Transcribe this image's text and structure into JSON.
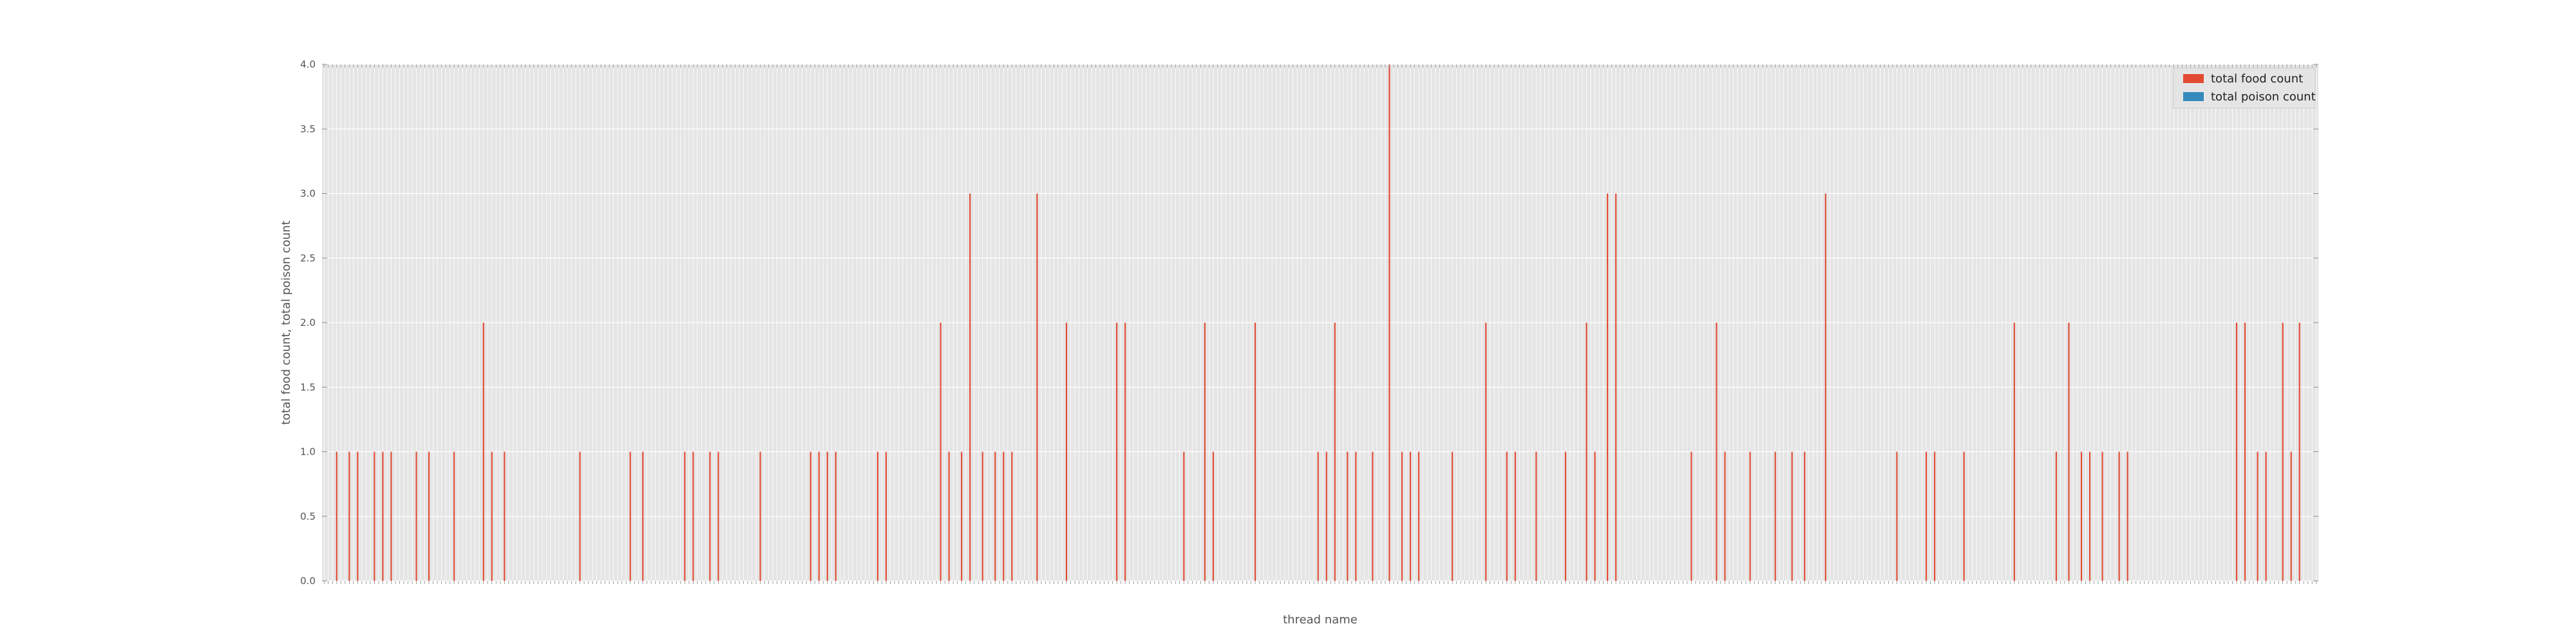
{
  "chart_data": {
    "type": "bar",
    "title": "",
    "xlabel": "thread name",
    "ylabel": "total food count, total poison count",
    "ylim": [
      0,
      4
    ],
    "yticks": [
      "0.0",
      "0.5",
      "1.0",
      "1.5",
      "2.0",
      "2.5",
      "3.0",
      "3.5",
      "4.0"
    ],
    "grid": true,
    "legend_position": "top-right",
    "series": [
      {
        "name": "total food count",
        "color": "#E24A33",
        "values": [
          0,
          0,
          0,
          1,
          0,
          0,
          1,
          0,
          1,
          0,
          0,
          0,
          1,
          0,
          1,
          0,
          1,
          0,
          0,
          0,
          0,
          0,
          1,
          0,
          0,
          1,
          0,
          0,
          0,
          0,
          0,
          1,
          0,
          0,
          0,
          0,
          0,
          0,
          2,
          0,
          1,
          0,
          0,
          1,
          0,
          0,
          0,
          0,
          0,
          0,
          0,
          0,
          0,
          0,
          0,
          0,
          0,
          0,
          0,
          0,
          0,
          1,
          0,
          0,
          0,
          0,
          0,
          0,
          0,
          0,
          0,
          0,
          0,
          1,
          0,
          0,
          1,
          0,
          0,
          0,
          0,
          0,
          0,
          0,
          0,
          0,
          1,
          0,
          1,
          0,
          0,
          0,
          1,
          0,
          1,
          0,
          0,
          0,
          0,
          0,
          0,
          0,
          0,
          0,
          1,
          0,
          0,
          0,
          0,
          0,
          0,
          0,
          0,
          0,
          0,
          0,
          1,
          0,
          1,
          0,
          1,
          0,
          1,
          0,
          0,
          0,
          0,
          0,
          0,
          0,
          0,
          0,
          1,
          0,
          1,
          0,
          0,
          0,
          0,
          0,
          0,
          0,
          0,
          0,
          0,
          0,
          0,
          2,
          0,
          1,
          0,
          0,
          1,
          0,
          3,
          0,
          0,
          1,
          0,
          0,
          1,
          0,
          1,
          0,
          1,
          0,
          0,
          0,
          0,
          0,
          3,
          0,
          0,
          0,
          0,
          0,
          0,
          2,
          0,
          0,
          0,
          0,
          0,
          0,
          0,
          0,
          0,
          0,
          0,
          2,
          0,
          2,
          0,
          0,
          0,
          0,
          0,
          0,
          0,
          0,
          0,
          0,
          0,
          0,
          0,
          1,
          0,
          0,
          0,
          0,
          2,
          0,
          1,
          0,
          0,
          0,
          0,
          0,
          0,
          0,
          0,
          0,
          2,
          0,
          0,
          0,
          0,
          0,
          0,
          0,
          0,
          0,
          0,
          0,
          0,
          0,
          0,
          1,
          0,
          1,
          0,
          2,
          0,
          0,
          1,
          0,
          1,
          0,
          0,
          0,
          1,
          0,
          0,
          0,
          4,
          0,
          0,
          1,
          0,
          1,
          0,
          1,
          0,
          0,
          0,
          0,
          0,
          0,
          0,
          1,
          0,
          0,
          0,
          0,
          0,
          0,
          0,
          2,
          0,
          0,
          0,
          0,
          1,
          0,
          1,
          0,
          0,
          0,
          0,
          1,
          0,
          0,
          0,
          0,
          0,
          0,
          1,
          0,
          0,
          0,
          0,
          2,
          0,
          1,
          0,
          0,
          3,
          0,
          3,
          0,
          0,
          0,
          0,
          0,
          0,
          0,
          0,
          0,
          0,
          0,
          0,
          0,
          0,
          0,
          0,
          0,
          1,
          0,
          0,
          0,
          0,
          0,
          2,
          0,
          1,
          0,
          0,
          0,
          0,
          0,
          1,
          0,
          0,
          0,
          0,
          0,
          1,
          0,
          0,
          0,
          1,
          0,
          0,
          1,
          0,
          0,
          0,
          0,
          3,
          0,
          0,
          0,
          0,
          0,
          0,
          0,
          0,
          0,
          0,
          0,
          0,
          0,
          0,
          0,
          0,
          1,
          0,
          0,
          0,
          0,
          0,
          0,
          1,
          0,
          1,
          0,
          0,
          0,
          0,
          0,
          0,
          1,
          0,
          0,
          0,
          0,
          0,
          0,
          0,
          0,
          0,
          0,
          0,
          2,
          0,
          0,
          0,
          0,
          0,
          0,
          0,
          0,
          0,
          1,
          0,
          0,
          2,
          0,
          0,
          1,
          0,
          1,
          0,
          0,
          1,
          0,
          0,
          0,
          1,
          0,
          1,
          0,
          0,
          0,
          0,
          0,
          0,
          0,
          0,
          0,
          0,
          0,
          0,
          0,
          0,
          0,
          0,
          0,
          0,
          0,
          0,
          0,
          0,
          0,
          0,
          0,
          2,
          0,
          2,
          0,
          0,
          1,
          0,
          1,
          0,
          0,
          0,
          2,
          0,
          1,
          0,
          2,
          0,
          0,
          0,
          0
        ]
      },
      {
        "name": "total poison count",
        "color": "#348ABD",
        "values": [
          0,
          0,
          0,
          0,
          0,
          0,
          0,
          0,
          0,
          0,
          0,
          0,
          0,
          0,
          0,
          0,
          0,
          0,
          0,
          0,
          0,
          0,
          0,
          0,
          0,
          0,
          0,
          0,
          0,
          0,
          0,
          0,
          0,
          0,
          0,
          0,
          0,
          0,
          0,
          0,
          0,
          0,
          0,
          0,
          0,
          0,
          0,
          0,
          0,
          0,
          0,
          0,
          0,
          0,
          0,
          0,
          0,
          0,
          0,
          0,
          0,
          0,
          0,
          0,
          0,
          0,
          0,
          0,
          0,
          0,
          0,
          0,
          0,
          0,
          0,
          0,
          0,
          0,
          0,
          0,
          0,
          0,
          0,
          0,
          0,
          0,
          0,
          0,
          0,
          0,
          0,
          0,
          0,
          0,
          0,
          0,
          0,
          0,
          0,
          0,
          0,
          0,
          0,
          0,
          0,
          0,
          0,
          0,
          0,
          0,
          0,
          0,
          0,
          0,
          0,
          0,
          0,
          0,
          0,
          0,
          0,
          0,
          0,
          0,
          0,
          0,
          0,
          0,
          0,
          0,
          0,
          0,
          0,
          0,
          0,
          0,
          0,
          0,
          0,
          0,
          0,
          0,
          0,
          0,
          0,
          0,
          0,
          0,
          0,
          0,
          0,
          0,
          0,
          0,
          0,
          0,
          0,
          0,
          0,
          0,
          0,
          0,
          0,
          0,
          0,
          0,
          0,
          0,
          0,
          0,
          0,
          0,
          0,
          0,
          0,
          0,
          0,
          0,
          0,
          0,
          0,
          0,
          0,
          0,
          0,
          0,
          0,
          0,
          0,
          0,
          0,
          0,
          0,
          0,
          0,
          0,
          0,
          0,
          0,
          0,
          0,
          0,
          0,
          0,
          0,
          0,
          0,
          0,
          0,
          0,
          0,
          0,
          0,
          0,
          0,
          0,
          0,
          0,
          0,
          0,
          0,
          0,
          0,
          0,
          0,
          0,
          0,
          0,
          0,
          0,
          0,
          0,
          0,
          0,
          0,
          0,
          0,
          0,
          0,
          0,
          0,
          0,
          0,
          0,
          0,
          0,
          0,
          0,
          0,
          0,
          0,
          0,
          0,
          0,
          0,
          0,
          0,
          0,
          0,
          0,
          0,
          0,
          0,
          0,
          0,
          0,
          0,
          0,
          0,
          0,
          0,
          0,
          0,
          0,
          0,
          0,
          0,
          0,
          0,
          0,
          0,
          0,
          0,
          0,
          0,
          0,
          0,
          0,
          0,
          0,
          0,
          0,
          0,
          0,
          0,
          0,
          0,
          0,
          0,
          0,
          0,
          0,
          0,
          0,
          0,
          0,
          0,
          0,
          0,
          0,
          0,
          0,
          0,
          0,
          0,
          0,
          0,
          0,
          0,
          0,
          0,
          0,
          0,
          0,
          0,
          0,
          0,
          0,
          0,
          0,
          0,
          0,
          0,
          0,
          0,
          0,
          0,
          0,
          0,
          0,
          0,
          0,
          0,
          0,
          0,
          0,
          0,
          0,
          0,
          0,
          0,
          0,
          0,
          0,
          0,
          0,
          0,
          0,
          0,
          0,
          0,
          0,
          0,
          0,
          0,
          0,
          0,
          0,
          0,
          0,
          0,
          0,
          0,
          0,
          0,
          0,
          0,
          0,
          0,
          0,
          0,
          0,
          0,
          0,
          0,
          0,
          0,
          0,
          0,
          0,
          0,
          0,
          0,
          0,
          0,
          0,
          0,
          0,
          0,
          0,
          0,
          0,
          0,
          0,
          0,
          0,
          0,
          0,
          0,
          0,
          0,
          0,
          0,
          0,
          0,
          0,
          0,
          0,
          0,
          0,
          0,
          0,
          0,
          0,
          0,
          0,
          0,
          0,
          0,
          0,
          0,
          0,
          0,
          0,
          0,
          0,
          0,
          0,
          0,
          0,
          0,
          0,
          0,
          0,
          0,
          0,
          0,
          0,
          0,
          0,
          0,
          0,
          0,
          0,
          0,
          0,
          0
        ]
      }
    ]
  }
}
